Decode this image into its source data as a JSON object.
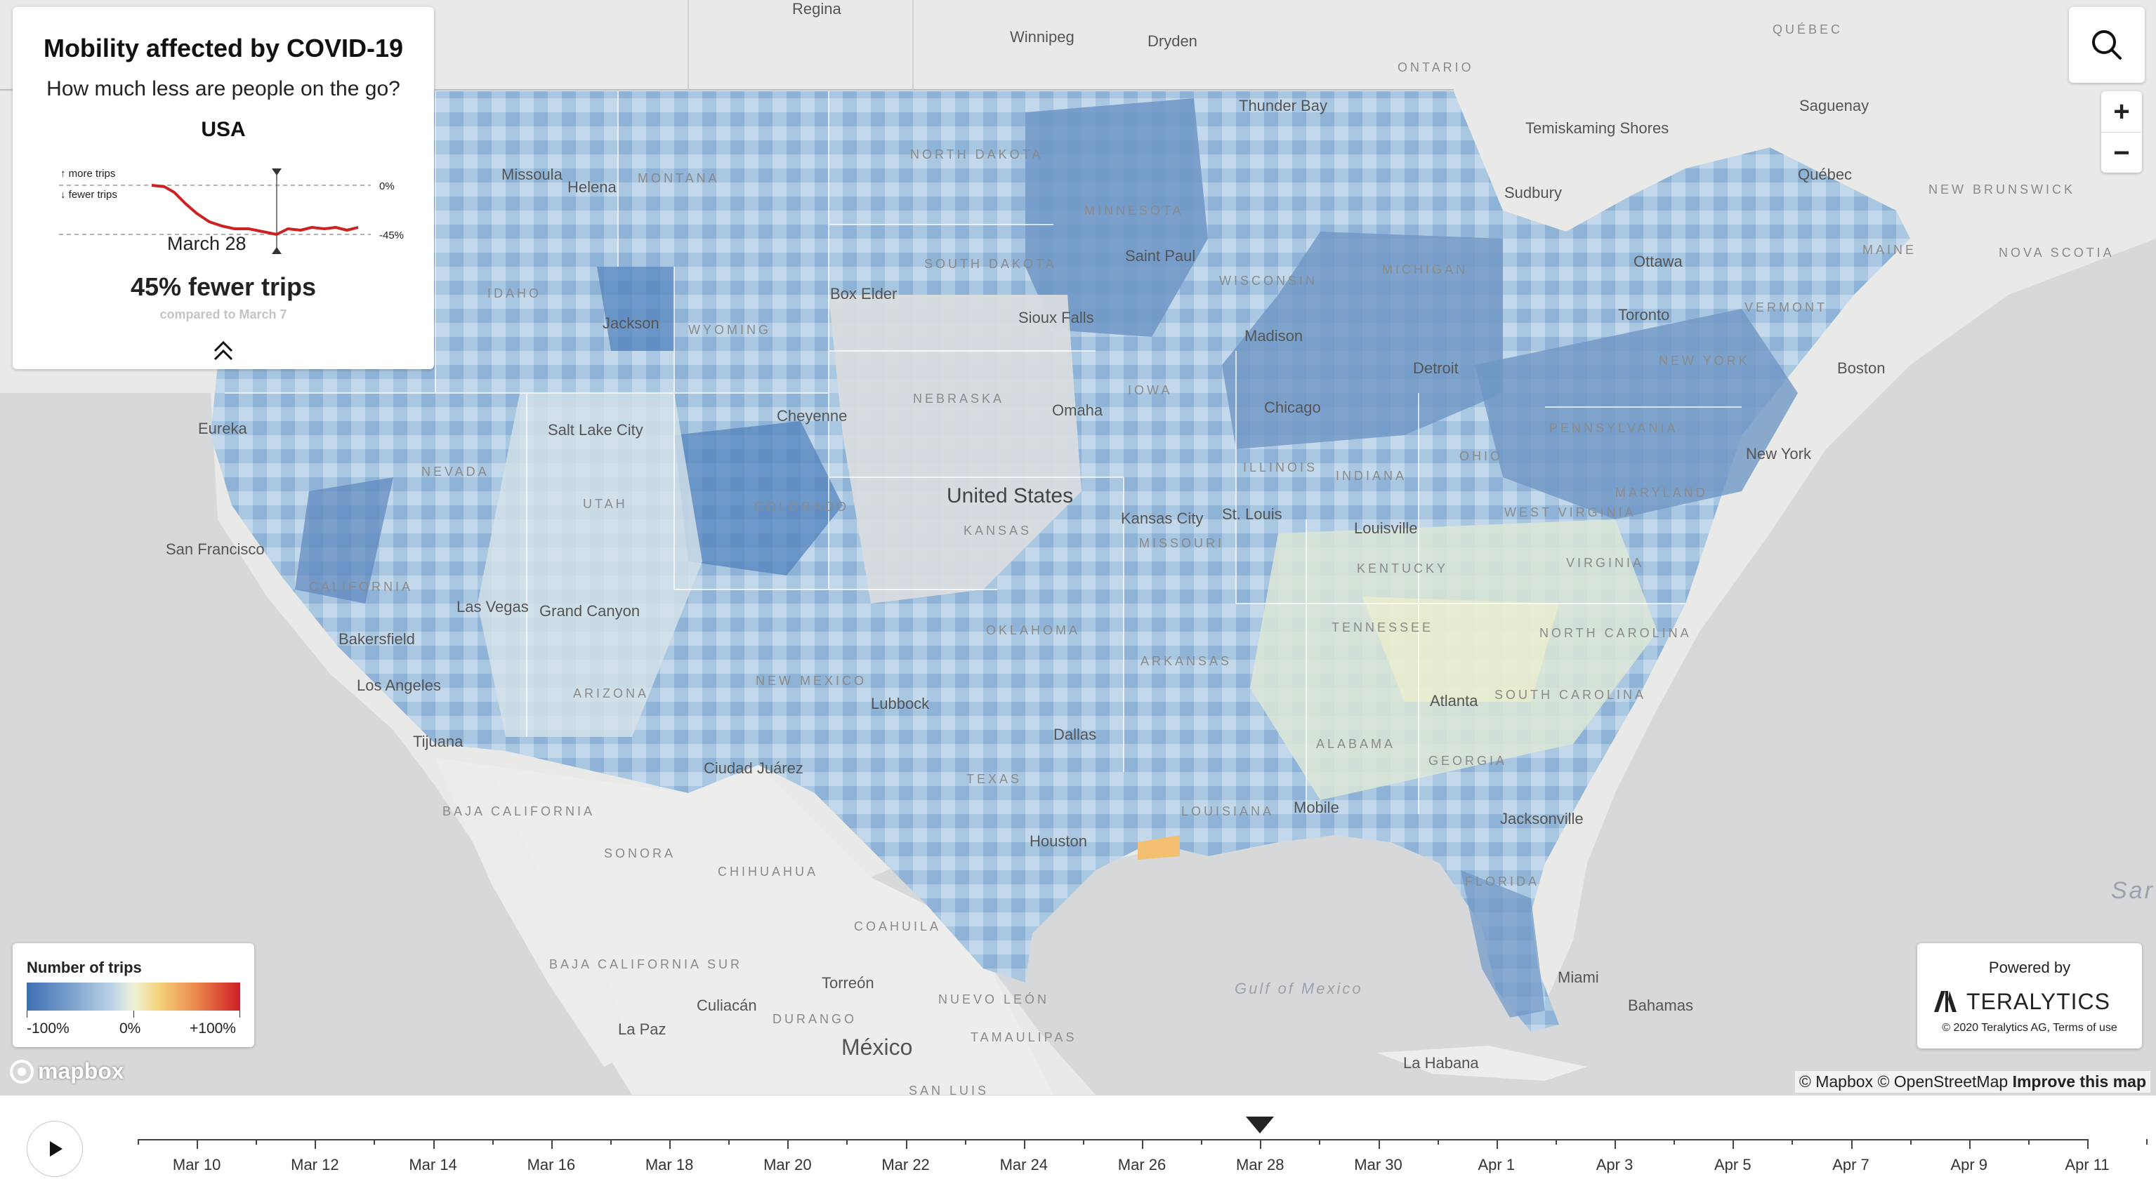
{
  "panel": {
    "title": "Mobility affected by COVID-19",
    "subtitle": "How much less are people on the go?",
    "region": "USA",
    "spark_more": "↑ more trips",
    "spark_fewer": "↓ fewer trips",
    "spark_zero": "0%",
    "spark_min": "-45%",
    "current_date": "March 28",
    "headline": "45% fewer trips",
    "compared": "compared to March 7"
  },
  "legend": {
    "title": "Number of trips",
    "min": "-100%",
    "mid": "0%",
    "max": "+100%"
  },
  "powered": {
    "label": "Powered by",
    "brand": "TERALYTICS",
    "copyright": "© 2020 Teralytics AG, Terms of use"
  },
  "attribution": {
    "mapbox": "© Mapbox",
    "osm": "© OpenStreetMap",
    "improve": "Improve this map",
    "logo": "mapbox"
  },
  "map": {
    "country_label": "United States",
    "cities": [
      {
        "name": "Regina"
      },
      {
        "name": "Winnipeg"
      },
      {
        "name": "Dryden"
      },
      {
        "name": "Thunder Bay"
      },
      {
        "name": "Temiskaming Shores"
      },
      {
        "name": "Saguenay"
      },
      {
        "name": "Québec"
      },
      {
        "name": "Sudbury"
      },
      {
        "name": "Ottawa"
      },
      {
        "name": "Toronto"
      },
      {
        "name": "Boston"
      },
      {
        "name": "New York"
      },
      {
        "name": "Detroit"
      },
      {
        "name": "Chicago"
      },
      {
        "name": "Madison"
      },
      {
        "name": "Saint Paul"
      },
      {
        "name": "Sioux Falls"
      },
      {
        "name": "Omaha"
      },
      {
        "name": "Box Elder"
      },
      {
        "name": "Missoula"
      },
      {
        "name": "Helena"
      },
      {
        "name": "Jackson"
      },
      {
        "name": "Cheyenne"
      },
      {
        "name": "Salt Lake City"
      },
      {
        "name": "Eureka"
      },
      {
        "name": "San Francisco"
      },
      {
        "name": "Bakersfield"
      },
      {
        "name": "Las Vegas"
      },
      {
        "name": "Grand Canyon"
      },
      {
        "name": "Los Angeles"
      },
      {
        "name": "Tijuana"
      },
      {
        "name": "Kansas City"
      },
      {
        "name": "St. Louis"
      },
      {
        "name": "Louisville"
      },
      {
        "name": "Lubbock"
      },
      {
        "name": "Ciudad Juárez"
      },
      {
        "name": "Dallas"
      },
      {
        "name": "Houston"
      },
      {
        "name": "Atlanta"
      },
      {
        "name": "Mobile"
      },
      {
        "name": "Jacksonville"
      },
      {
        "name": "Miami"
      },
      {
        "name": "Bahamas"
      },
      {
        "name": "La Habana"
      },
      {
        "name": "Culiacán"
      },
      {
        "name": "Torreón"
      },
      {
        "name": "La Paz"
      },
      {
        "name": "México"
      }
    ],
    "states": [
      {
        "name": "ONTARIO"
      },
      {
        "name": "QUÉBEC"
      },
      {
        "name": "NEW BRUNSWICK"
      },
      {
        "name": "NOVA SCOTIA"
      },
      {
        "name": "MAINE"
      },
      {
        "name": "VERMONT"
      },
      {
        "name": "NEW YORK"
      },
      {
        "name": "PENNSYLVANIA"
      },
      {
        "name": "MICHIGAN"
      },
      {
        "name": "WISCONSIN"
      },
      {
        "name": "MINNESOTA"
      },
      {
        "name": "NORTH DAKOTA"
      },
      {
        "name": "SOUTH DAKOTA"
      },
      {
        "name": "NEBRASKA"
      },
      {
        "name": "MONTANA"
      },
      {
        "name": "IDAHO"
      },
      {
        "name": "WYOMING"
      },
      {
        "name": "NEVADA"
      },
      {
        "name": "UTAH"
      },
      {
        "name": "COLORADO"
      },
      {
        "name": "CALIFORNIA"
      },
      {
        "name": "ARIZONA"
      },
      {
        "name": "NEW MEXICO"
      },
      {
        "name": "KANSAS"
      },
      {
        "name": "MISSOURI"
      },
      {
        "name": "IOWA"
      },
      {
        "name": "ILLINOIS"
      },
      {
        "name": "INDIANA"
      },
      {
        "name": "OHIO"
      },
      {
        "name": "WEST VIRGINIA"
      },
      {
        "name": "VIRGINIA"
      },
      {
        "name": "MARYLAND"
      },
      {
        "name": "KENTUCKY"
      },
      {
        "name": "TENNESSEE"
      },
      {
        "name": "NORTH CAROLINA"
      },
      {
        "name": "SOUTH CAROLINA"
      },
      {
        "name": "GEORGIA"
      },
      {
        "name": "ALABAMA"
      },
      {
        "name": "ARKANSAS"
      },
      {
        "name": "OKLAHOMA"
      },
      {
        "name": "TEXAS"
      },
      {
        "name": "LOUISIANA"
      },
      {
        "name": "FLORIDA"
      },
      {
        "name": "BAJA CALIFORNIA"
      },
      {
        "name": "SONORA"
      },
      {
        "name": "CHIHUAHUA"
      },
      {
        "name": "COAHUILA"
      },
      {
        "name": "BAJA CALIFORNIA SUR"
      },
      {
        "name": "DURANGO"
      },
      {
        "name": "NUEVO LEÓN"
      },
      {
        "name": "TAMAULIPAS"
      },
      {
        "name": "SAN LUIS"
      }
    ],
    "water": [
      {
        "name": "Gulf of Mexico"
      },
      {
        "name": "Sar"
      }
    ]
  },
  "timeline": {
    "selected": "Mar 28",
    "ticks": [
      "Mar 10",
      "Mar 12",
      "Mar 14",
      "Mar 16",
      "Mar 18",
      "Mar 20",
      "Mar 22",
      "Mar 24",
      "Mar 26",
      "Mar 28",
      "Mar 30",
      "Apr 1",
      "Apr 3",
      "Apr 5",
      "Apr 7",
      "Apr 9",
      "Apr 11"
    ]
  },
  "colors": {
    "strong_decrease": "#3f6fb2",
    "decrease": "#7fa4cf",
    "slight_decrease": "#bcd3e6",
    "neutral": "#eef2d8",
    "increase": "#f5d27b",
    "strong_increase": "#cf1f25",
    "spark_line": "#cc2222"
  }
}
